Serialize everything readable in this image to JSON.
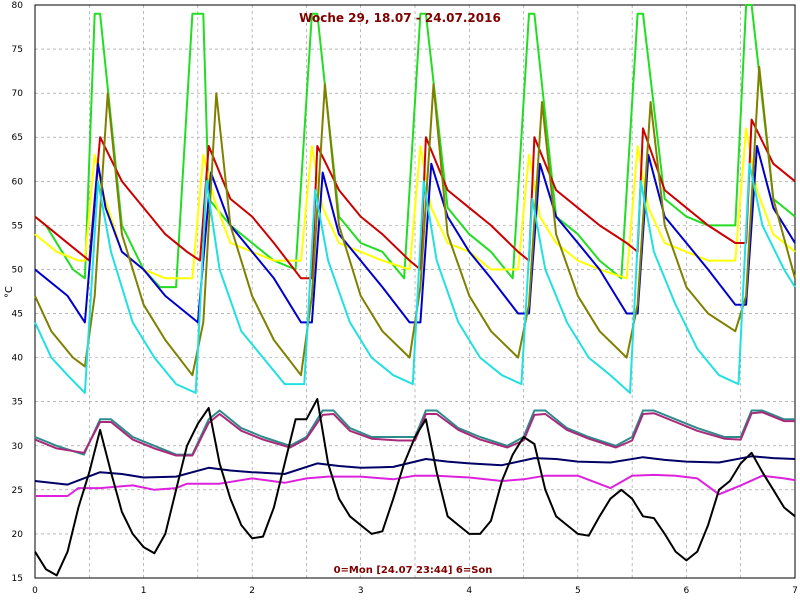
{
  "chart_data": {
    "type": "line",
    "title": "Woche 29, 18.07 - 24.07.2016",
    "footer": "0=Mon [24.07 23:44] 6=Son",
    "ylabel": "°C",
    "xlabel": "",
    "xlim": [
      0,
      7
    ],
    "ylim": [
      15,
      80
    ],
    "x_ticks": [
      "0",
      "1",
      "2",
      "3",
      "4",
      "5",
      "6",
      "7"
    ],
    "y_ticks": [
      "15",
      "20",
      "25",
      "30",
      "35",
      "40",
      "45",
      "50",
      "55",
      "60",
      "65",
      "70",
      "75",
      "80"
    ],
    "grid": true,
    "background": "#ffffff",
    "series": [
      {
        "color": "#22dd22",
        "x": [
          0,
          0.1,
          0.25,
          0.35,
          0.46,
          0.55,
          0.6,
          0.8,
          1.0,
          1.15,
          1.3,
          1.45,
          1.55,
          1.6,
          1.8,
          2.0,
          2.2,
          2.4,
          2.55,
          2.6,
          2.8,
          3.0,
          3.2,
          3.4,
          3.55,
          3.6,
          3.8,
          4.0,
          4.2,
          4.4,
          4.55,
          4.6,
          4.8,
          5.0,
          5.2,
          5.4,
          5.55,
          5.6,
          5.8,
          6.0,
          6.2,
          6.45,
          6.55,
          6.6,
          6.8,
          7.0
        ],
        "y": [
          56,
          55,
          52,
          50,
          49,
          79,
          79,
          55,
          50,
          48,
          48,
          79,
          79,
          58,
          55,
          53,
          51,
          50,
          79,
          79,
          56,
          53,
          52,
          49,
          79,
          79,
          57,
          54,
          52,
          49,
          79,
          79,
          56,
          54,
          51,
          49,
          79,
          79,
          58,
          56,
          55,
          55,
          80,
          80,
          58,
          56
        ]
      },
      {
        "color": "#ffff00",
        "x": [
          0,
          0.2,
          0.4,
          0.46,
          0.55,
          0.62,
          0.8,
          1.0,
          1.2,
          1.45,
          1.55,
          1.65,
          1.8,
          2.0,
          2.2,
          2.45,
          2.55,
          2.65,
          2.8,
          3.0,
          3.2,
          3.45,
          3.55,
          3.65,
          3.8,
          4.0,
          4.2,
          4.45,
          4.55,
          4.65,
          4.8,
          5.0,
          5.2,
          5.45,
          5.55,
          5.65,
          5.8,
          6.0,
          6.2,
          6.45,
          6.55,
          6.65,
          6.8,
          7.0
        ],
        "y": [
          54,
          52,
          51,
          51,
          63,
          59,
          52,
          50,
          49,
          49,
          63,
          58,
          53,
          52,
          51,
          51,
          64,
          57,
          53,
          52,
          51,
          50,
          64,
          57,
          53,
          52,
          50,
          50,
          63,
          56,
          53,
          51,
          50,
          49,
          64,
          57,
          53,
          52,
          51,
          51,
          66,
          59,
          54,
          52
        ]
      },
      {
        "color": "#cc0000",
        "x": [
          0,
          0.2,
          0.4,
          0.5,
          0.6,
          0.8,
          1.0,
          1.2,
          1.4,
          1.52,
          1.6,
          1.8,
          2.0,
          2.2,
          2.45,
          2.55,
          2.6,
          2.8,
          3.0,
          3.2,
          3.45,
          3.55,
          3.6,
          3.8,
          4.0,
          4.2,
          4.45,
          4.55,
          4.6,
          4.8,
          5.0,
          5.2,
          5.45,
          5.55,
          5.6,
          5.8,
          6.0,
          6.2,
          6.45,
          6.55,
          6.6,
          6.8,
          7.0
        ],
        "y": [
          56,
          54,
          52,
          51,
          65,
          60,
          57,
          54,
          52,
          51,
          64,
          58,
          56,
          53,
          49,
          49,
          64,
          59,
          56,
          54,
          51,
          50,
          65,
          59,
          57,
          55,
          52,
          51,
          65,
          59,
          57,
          55,
          53,
          52,
          66,
          59,
          57,
          55,
          53,
          53,
          67,
          62,
          60
        ]
      },
      {
        "color": "#0000cc",
        "x": [
          0,
          0.1,
          0.3,
          0.46,
          0.58,
          0.65,
          0.8,
          1.0,
          1.2,
          1.4,
          1.5,
          1.62,
          1.8,
          2.0,
          2.2,
          2.45,
          2.55,
          2.65,
          2.8,
          3.0,
          3.2,
          3.45,
          3.55,
          3.65,
          3.8,
          4.0,
          4.2,
          4.45,
          4.55,
          4.65,
          4.8,
          5.0,
          5.2,
          5.45,
          5.55,
          5.65,
          5.8,
          6.0,
          6.2,
          6.45,
          6.55,
          6.65,
          6.8,
          7.0
        ],
        "y": [
          50,
          49,
          47,
          44,
          62,
          57,
          52,
          50,
          47,
          45,
          44,
          61,
          55,
          52,
          49,
          44,
          44,
          61,
          54,
          51,
          48,
          44,
          44,
          62,
          56,
          52,
          49,
          45,
          45,
          62,
          56,
          53,
          50,
          45,
          45,
          63,
          56,
          53,
          50,
          46,
          46,
          64,
          57,
          53
        ]
      },
      {
        "color": "#808000",
        "x": [
          0,
          0.15,
          0.35,
          0.46,
          0.55,
          0.67,
          0.8,
          1.0,
          1.2,
          1.45,
          1.55,
          1.67,
          1.8,
          2.0,
          2.2,
          2.45,
          2.55,
          2.67,
          2.8,
          3.0,
          3.2,
          3.45,
          3.55,
          3.67,
          3.8,
          4.0,
          4.2,
          4.45,
          4.55,
          4.67,
          4.8,
          5.0,
          5.2,
          5.45,
          5.55,
          5.67,
          5.8,
          6.0,
          6.2,
          6.45,
          6.55,
          6.67,
          6.8,
          7.0
        ],
        "y": [
          47,
          43,
          40,
          39,
          47,
          70,
          54,
          46,
          42,
          38,
          44,
          70,
          55,
          47,
          42,
          38,
          47,
          71,
          55,
          47,
          43,
          40,
          48,
          71,
          54,
          47,
          43,
          40,
          46,
          69,
          54,
          47,
          43,
          40,
          46,
          69,
          55,
          48,
          45,
          43,
          47,
          73,
          58,
          49
        ]
      },
      {
        "color": "#22e0e0",
        "x": [
          0,
          0.15,
          0.3,
          0.46,
          0.58,
          0.7,
          0.9,
          1.1,
          1.3,
          1.48,
          1.58,
          1.7,
          1.9,
          2.1,
          2.3,
          2.48,
          2.58,
          2.7,
          2.9,
          3.1,
          3.3,
          3.48,
          3.58,
          3.7,
          3.9,
          4.1,
          4.3,
          4.48,
          4.58,
          4.7,
          4.9,
          5.1,
          5.3,
          5.48,
          5.58,
          5.7,
          5.9,
          6.1,
          6.3,
          6.48,
          6.58,
          6.7,
          6.9,
          7.0
        ],
        "y": [
          44,
          40,
          38,
          36,
          60,
          52,
          44,
          40,
          37,
          36,
          60,
          50,
          43,
          40,
          37,
          37,
          59,
          51,
          44,
          40,
          38,
          37,
          60,
          51,
          44,
          40,
          38,
          37,
          58,
          50,
          44,
          40,
          38,
          36,
          60,
          52,
          46,
          41,
          38,
          37,
          62,
          55,
          50,
          48
        ]
      },
      {
        "color": "#2e8b8b",
        "x": [
          0,
          0.2,
          0.45,
          0.6,
          0.7,
          0.9,
          1.1,
          1.3,
          1.45,
          1.6,
          1.7,
          1.9,
          2.1,
          2.35,
          2.5,
          2.65,
          2.75,
          2.9,
          3.1,
          3.35,
          3.5,
          3.6,
          3.7,
          3.9,
          4.1,
          4.35,
          4.5,
          4.6,
          4.7,
          4.9,
          5.1,
          5.35,
          5.5,
          5.6,
          5.7,
          5.9,
          6.1,
          6.35,
          6.5,
          6.6,
          6.7,
          6.9,
          7.0
        ],
        "y": [
          31,
          30,
          29,
          33,
          33,
          31,
          30,
          29,
          29,
          33,
          34,
          32,
          31,
          30,
          31,
          34,
          34,
          32,
          31,
          31,
          31,
          34,
          34,
          32,
          31,
          30,
          31,
          34,
          34,
          32,
          31,
          30,
          31,
          34,
          34,
          33,
          32,
          31,
          31,
          34,
          34,
          33,
          33
        ]
      },
      {
        "color": "#aa2a7a",
        "x": [
          0,
          0.2,
          0.45,
          0.6,
          0.7,
          0.9,
          1.1,
          1.3,
          1.45,
          1.6,
          1.7,
          1.9,
          2.1,
          2.35,
          2.5,
          2.65,
          2.75,
          2.9,
          3.1,
          3.35,
          3.5,
          3.6,
          3.7,
          3.9,
          4.1,
          4.35,
          4.5,
          4.6,
          4.7,
          4.9,
          5.1,
          5.35,
          5.5,
          5.6,
          5.7,
          5.9,
          6.1,
          6.35,
          6.5,
          6.6,
          6.7,
          6.9,
          7.0
        ],
        "y": [
          30.7,
          29.7,
          29.2,
          32.7,
          32.7,
          30.7,
          29.7,
          28.9,
          28.9,
          32.6,
          33.6,
          31.7,
          30.7,
          29.8,
          30.8,
          33.5,
          33.6,
          31.7,
          30.8,
          30.6,
          30.6,
          33.6,
          33.6,
          31.8,
          30.7,
          29.8,
          30.6,
          33.5,
          33.6,
          31.8,
          30.8,
          29.8,
          30.6,
          33.6,
          33.7,
          32.7,
          31.7,
          30.8,
          30.7,
          33.7,
          33.8,
          32.8,
          32.8
        ]
      },
      {
        "color": "#000066",
        "x": [
          0,
          0.3,
          0.6,
          0.8,
          1.0,
          1.3,
          1.6,
          1.8,
          2.0,
          2.3,
          2.6,
          2.8,
          3.0,
          3.3,
          3.6,
          3.8,
          4.0,
          4.3,
          4.6,
          4.8,
          5.0,
          5.3,
          5.6,
          5.8,
          6.0,
          6.3,
          6.6,
          6.8,
          7.0
        ],
        "y": [
          26,
          25.6,
          27,
          26.8,
          26.4,
          26.5,
          27.5,
          27.2,
          27.0,
          26.8,
          28.0,
          27.7,
          27.5,
          27.6,
          28.5,
          28.2,
          28.0,
          27.8,
          28.6,
          28.5,
          28.2,
          28.1,
          28.7,
          28.4,
          28.2,
          28.1,
          28.8,
          28.6,
          28.5
        ]
      },
      {
        "color": "#dd22dd",
        "x": [
          0,
          0.3,
          0.4,
          0.6,
          0.9,
          1.1,
          1.3,
          1.4,
          1.7,
          2.0,
          2.3,
          2.5,
          2.7,
          3.0,
          3.3,
          3.5,
          3.7,
          4.0,
          4.3,
          4.5,
          4.7,
          5.0,
          5.3,
          5.5,
          5.7,
          5.9,
          6.1,
          6.3,
          6.5,
          6.7,
          6.9,
          7.0
        ],
        "y": [
          24.3,
          24.3,
          25.2,
          25.2,
          25.5,
          25.0,
          25.2,
          25.7,
          25.7,
          26.3,
          25.8,
          26.3,
          26.5,
          26.5,
          26.2,
          26.6,
          26.6,
          26.4,
          26.0,
          26.2,
          26.6,
          26.6,
          25.2,
          26.6,
          26.7,
          26.6,
          26.3,
          24.5,
          25.5,
          26.6,
          26.3,
          26.1
        ]
      },
      {
        "color": "#000000",
        "x": [
          0,
          0.1,
          0.2,
          0.3,
          0.4,
          0.5,
          0.6,
          0.7,
          0.8,
          0.9,
          1.0,
          1.1,
          1.2,
          1.3,
          1.4,
          1.5,
          1.6,
          1.7,
          1.8,
          1.9,
          2.0,
          2.1,
          2.2,
          2.3,
          2.4,
          2.5,
          2.6,
          2.7,
          2.8,
          2.9,
          3.0,
          3.1,
          3.2,
          3.3,
          3.4,
          3.5,
          3.6,
          3.7,
          3.8,
          3.9,
          4.0,
          4.1,
          4.2,
          4.3,
          4.4,
          4.5,
          4.6,
          4.7,
          4.8,
          4.9,
          5.0,
          5.1,
          5.2,
          5.3,
          5.4,
          5.5,
          5.6,
          5.7,
          5.8,
          5.9,
          6.0,
          6.1,
          6.2,
          6.3,
          6.4,
          6.5,
          6.6,
          6.7,
          6.8,
          6.9,
          7.0
        ],
        "y": [
          18,
          16,
          15.3,
          18,
          23,
          27,
          31.8,
          27,
          22.5,
          20,
          18.5,
          17.8,
          20,
          25,
          30,
          32.5,
          34.3,
          28,
          24,
          21,
          19.5,
          19.7,
          23,
          28,
          33,
          33,
          35.3,
          28,
          24,
          22,
          21,
          20,
          20.3,
          24,
          28,
          31,
          33,
          27,
          22,
          21,
          20,
          20,
          21.5,
          26,
          29,
          31,
          30.2,
          25,
          22,
          21,
          20,
          19.8,
          22,
          24,
          25,
          24,
          22,
          21.8,
          20,
          18,
          17,
          18,
          21,
          25,
          26,
          28,
          29.2,
          27,
          25,
          23,
          22
        ]
      }
    ]
  }
}
